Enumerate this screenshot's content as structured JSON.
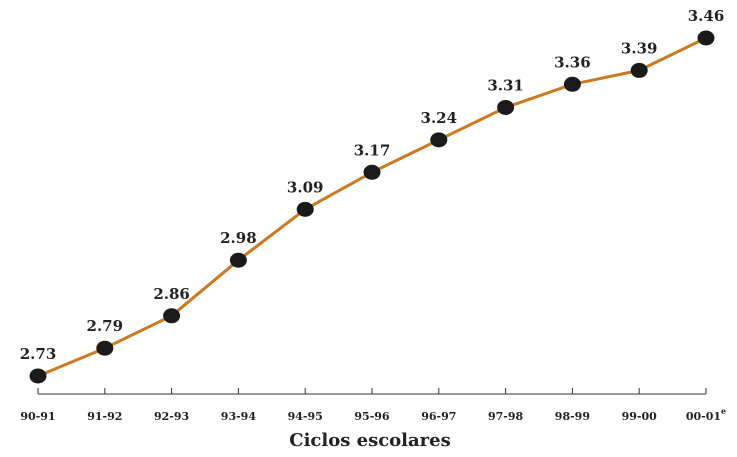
{
  "chart_data": {
    "type": "line",
    "title": "",
    "xlabel": "Ciclos escolares",
    "ylabel": "",
    "categories": [
      "90-91",
      "91-92",
      "92-93",
      "93-94",
      "94-95",
      "95-96",
      "96-97",
      "97-98",
      "98-99",
      "99-00",
      "00-01"
    ],
    "category_superscripts": [
      "",
      "",
      "",
      "",
      "",
      "",
      "",
      "",
      "",
      "",
      "e"
    ],
    "values": [
      2.73,
      2.79,
      2.86,
      2.98,
      3.09,
      3.17,
      3.24,
      3.31,
      3.36,
      3.39,
      3.46
    ],
    "value_labels": [
      "2.73",
      "2.79",
      "2.86",
      "2.98",
      "3.09",
      "3.17",
      "3.24",
      "3.31",
      "3.36",
      "3.39",
      "3.46"
    ],
    "grid": false,
    "legend": "none",
    "colors": {
      "line": "#cc7a22",
      "marker": "#1a1a1a",
      "axis": "#333333"
    }
  }
}
